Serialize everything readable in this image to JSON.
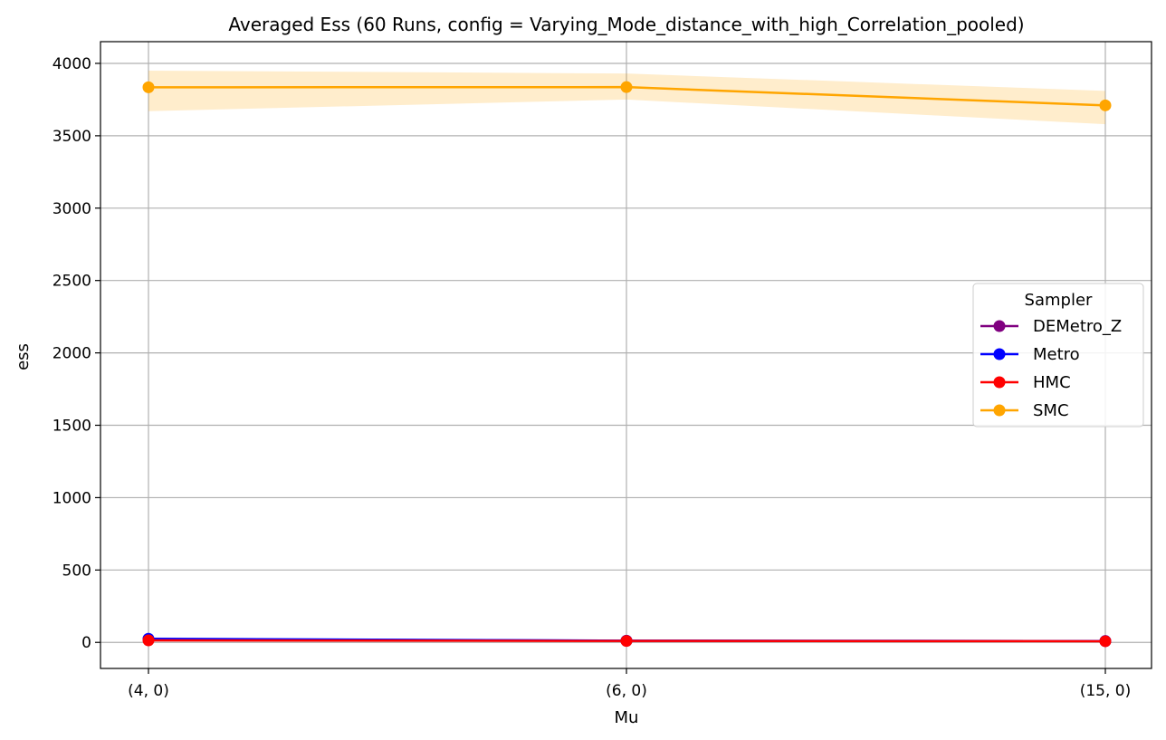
{
  "chart_data": {
    "type": "line",
    "title": "Averaged Ess (60 Runs, config = Varying_Mode_distance_with_high_Correlation_pooled)",
    "xlabel": "Mu",
    "ylabel": "ess",
    "categories": [
      "(4, 0)",
      "(6, 0)",
      "(15, 0)"
    ],
    "ylim": [
      -180,
      4150
    ],
    "yticks": [
      0,
      500,
      1000,
      1500,
      2000,
      2500,
      3000,
      3500,
      4000
    ],
    "grid": true,
    "legend": {
      "title": "Sampler",
      "position": "center-right"
    },
    "series": [
      {
        "name": "DEMetro_Z",
        "color": "#800080",
        "values": [
          22,
          11,
          9
        ],
        "band_low": [
          14,
          7,
          6
        ],
        "band_high": [
          30,
          15,
          12
        ]
      },
      {
        "name": "Metro",
        "color": "#0000ff",
        "values": [
          25,
          12,
          9
        ],
        "band_low": [
          16,
          8,
          6
        ],
        "band_high": [
          34,
          16,
          12
        ]
      },
      {
        "name": "HMC",
        "color": "#ff0000",
        "values": [
          14,
          10,
          8
        ],
        "band_low": [
          10,
          7,
          6
        ],
        "band_high": [
          18,
          13,
          10
        ]
      },
      {
        "name": "SMC",
        "color": "#ffa500",
        "values": [
          3835,
          3836,
          3710
        ],
        "band_low": [
          3670,
          3750,
          3580
        ],
        "band_high": [
          3950,
          3930,
          3810
        ]
      }
    ]
  }
}
